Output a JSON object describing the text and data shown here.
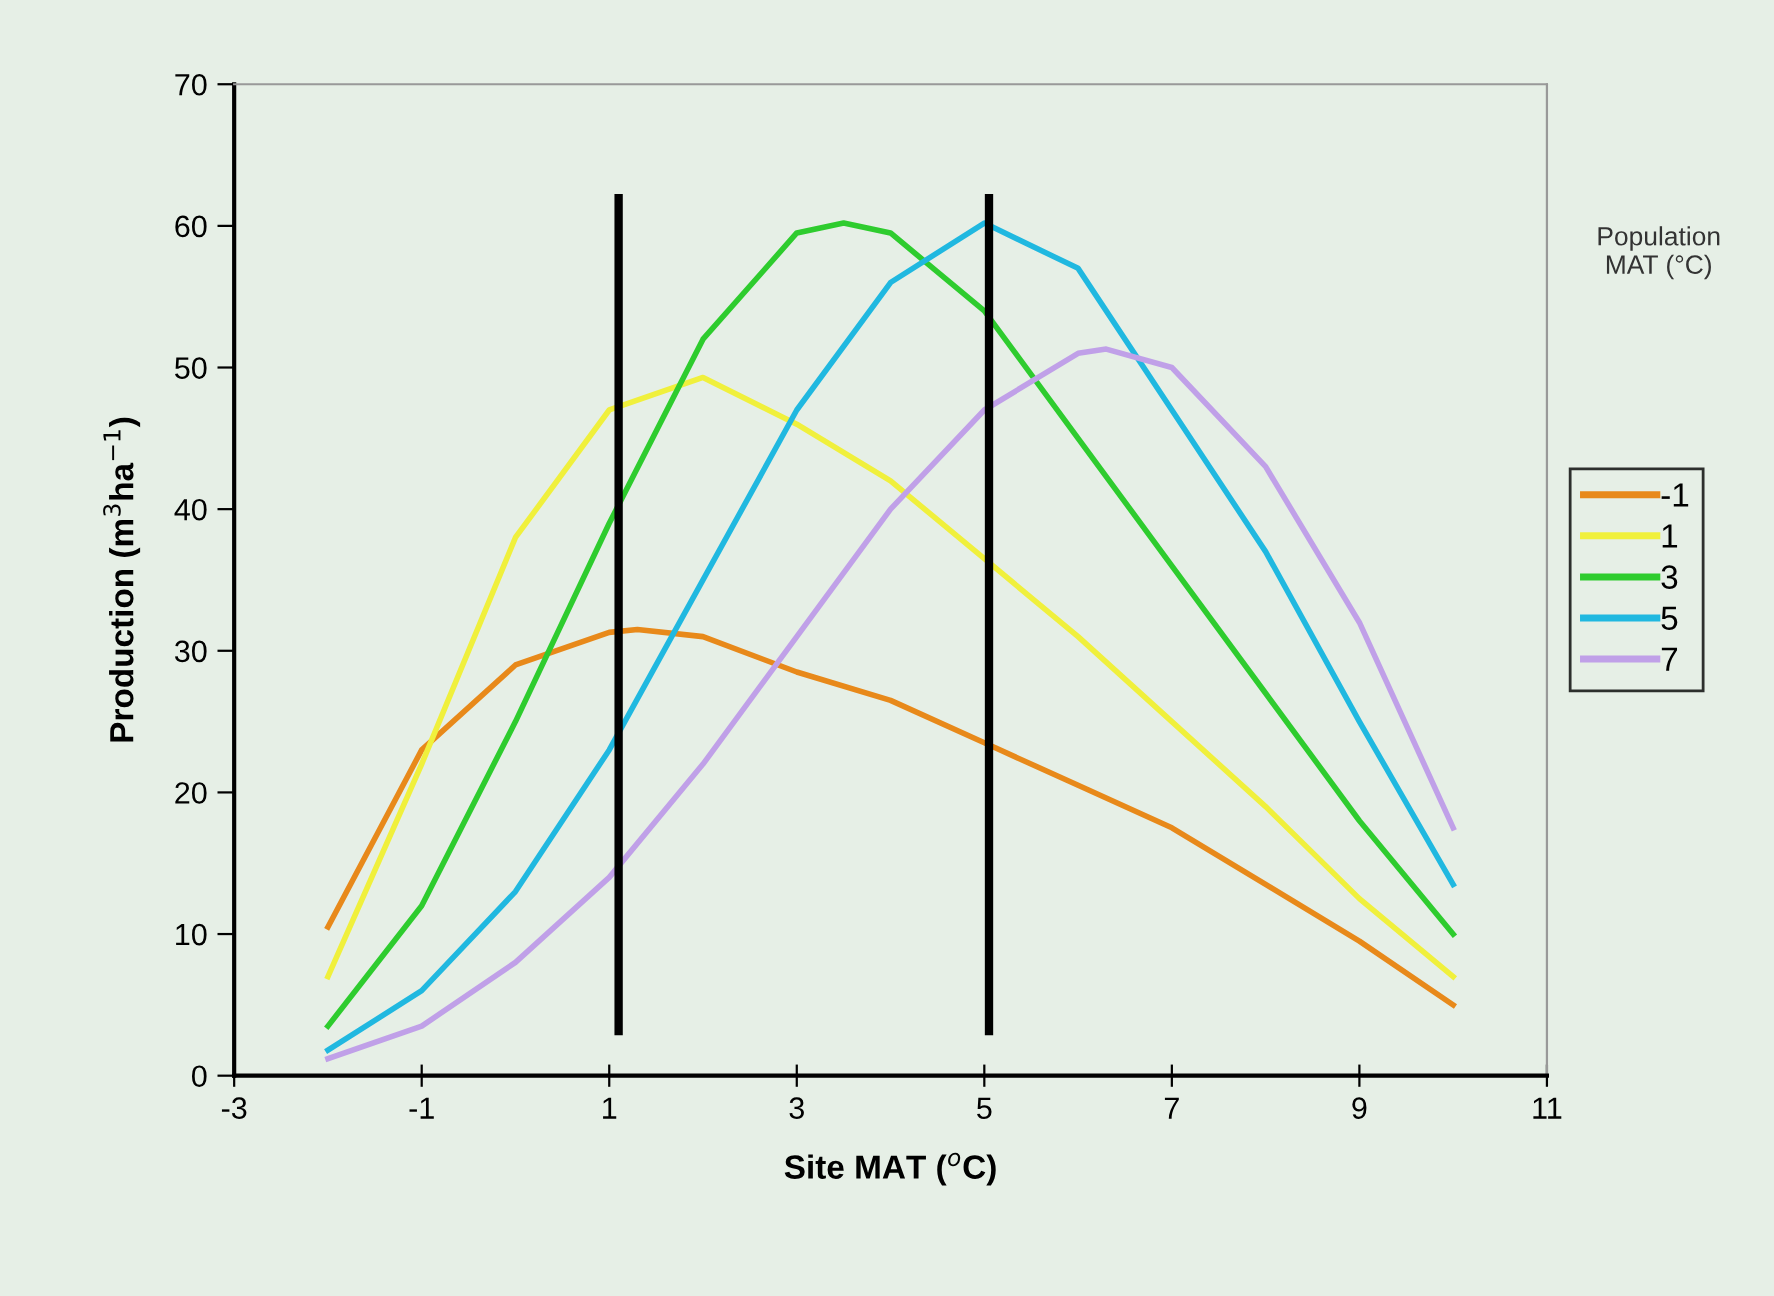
{
  "chart_data": {
    "type": "line",
    "xlabel": "Site MAT ($^{o}$C)",
    "ylabel": "Production (m$^{3}$ha$^{−1}$)",
    "legend_title": "Population\nMAT (°C)",
    "series": [
      {
        "name": "-1",
        "color": "#e8891a",
        "x": [
          -2,
          -1,
          0,
          1,
          1.3,
          2,
          3,
          4,
          5,
          6,
          7,
          8,
          9,
          10
        ],
        "values": [
          10.5,
          23,
          29,
          31.3,
          31.5,
          31,
          28.5,
          26.5,
          23.5,
          20.5,
          17.5,
          13.5,
          9.5,
          5
        ]
      },
      {
        "name": "1",
        "color": "#f0f03c",
        "x": [
          -2,
          -1,
          0,
          1,
          2,
          3,
          4,
          5,
          6,
          7,
          8,
          9,
          10
        ],
        "values": [
          7,
          22,
          38,
          47,
          49.3,
          46,
          42,
          36.5,
          31,
          25,
          19,
          12.5,
          7
        ]
      },
      {
        "name": "3",
        "color": "#2ecc2e",
        "x": [
          -2,
          -1,
          0,
          1,
          2,
          3,
          3.5,
          4,
          5,
          6,
          7,
          8,
          9,
          10
        ],
        "values": [
          3.5,
          12,
          25,
          39,
          52,
          59.5,
          60.2,
          59.5,
          54,
          45,
          36,
          27,
          18,
          10
        ]
      },
      {
        "name": "5",
        "color": "#20b8e0",
        "x": [
          -2,
          -1,
          0,
          1,
          2,
          3,
          4,
          5,
          6,
          7,
          8,
          9,
          10
        ],
        "values": [
          1.8,
          6,
          13,
          23,
          35,
          47,
          56,
          60.2,
          57,
          47,
          37,
          25,
          13.5
        ]
      },
      {
        "name": "7",
        "color": "#c0a0e8",
        "x": [
          -2,
          -1,
          0,
          1,
          2,
          3,
          4,
          5,
          6,
          6.3,
          7,
          8,
          9,
          10
        ],
        "values": [
          1.2,
          3.5,
          8,
          14,
          22,
          31,
          40,
          47,
          51,
          51.3,
          50,
          43,
          32,
          17.5
        ]
      }
    ],
    "ref_lines": [
      {
        "axis": "x",
        "value": 1.1,
        "color": "#000000"
      },
      {
        "axis": "x",
        "value": 5.05,
        "color": "#000000"
      }
    ],
    "xlim": [
      -3,
      11
    ],
    "xticks": [
      -3,
      -1,
      1,
      3,
      5,
      7,
      9,
      11
    ],
    "ylim": [
      0,
      70
    ],
    "yticks": [
      0,
      10,
      20,
      30,
      40,
      50,
      60,
      70
    ],
    "grid": false,
    "legend": "right",
    "marker": "none",
    "line_style": "solid"
  }
}
